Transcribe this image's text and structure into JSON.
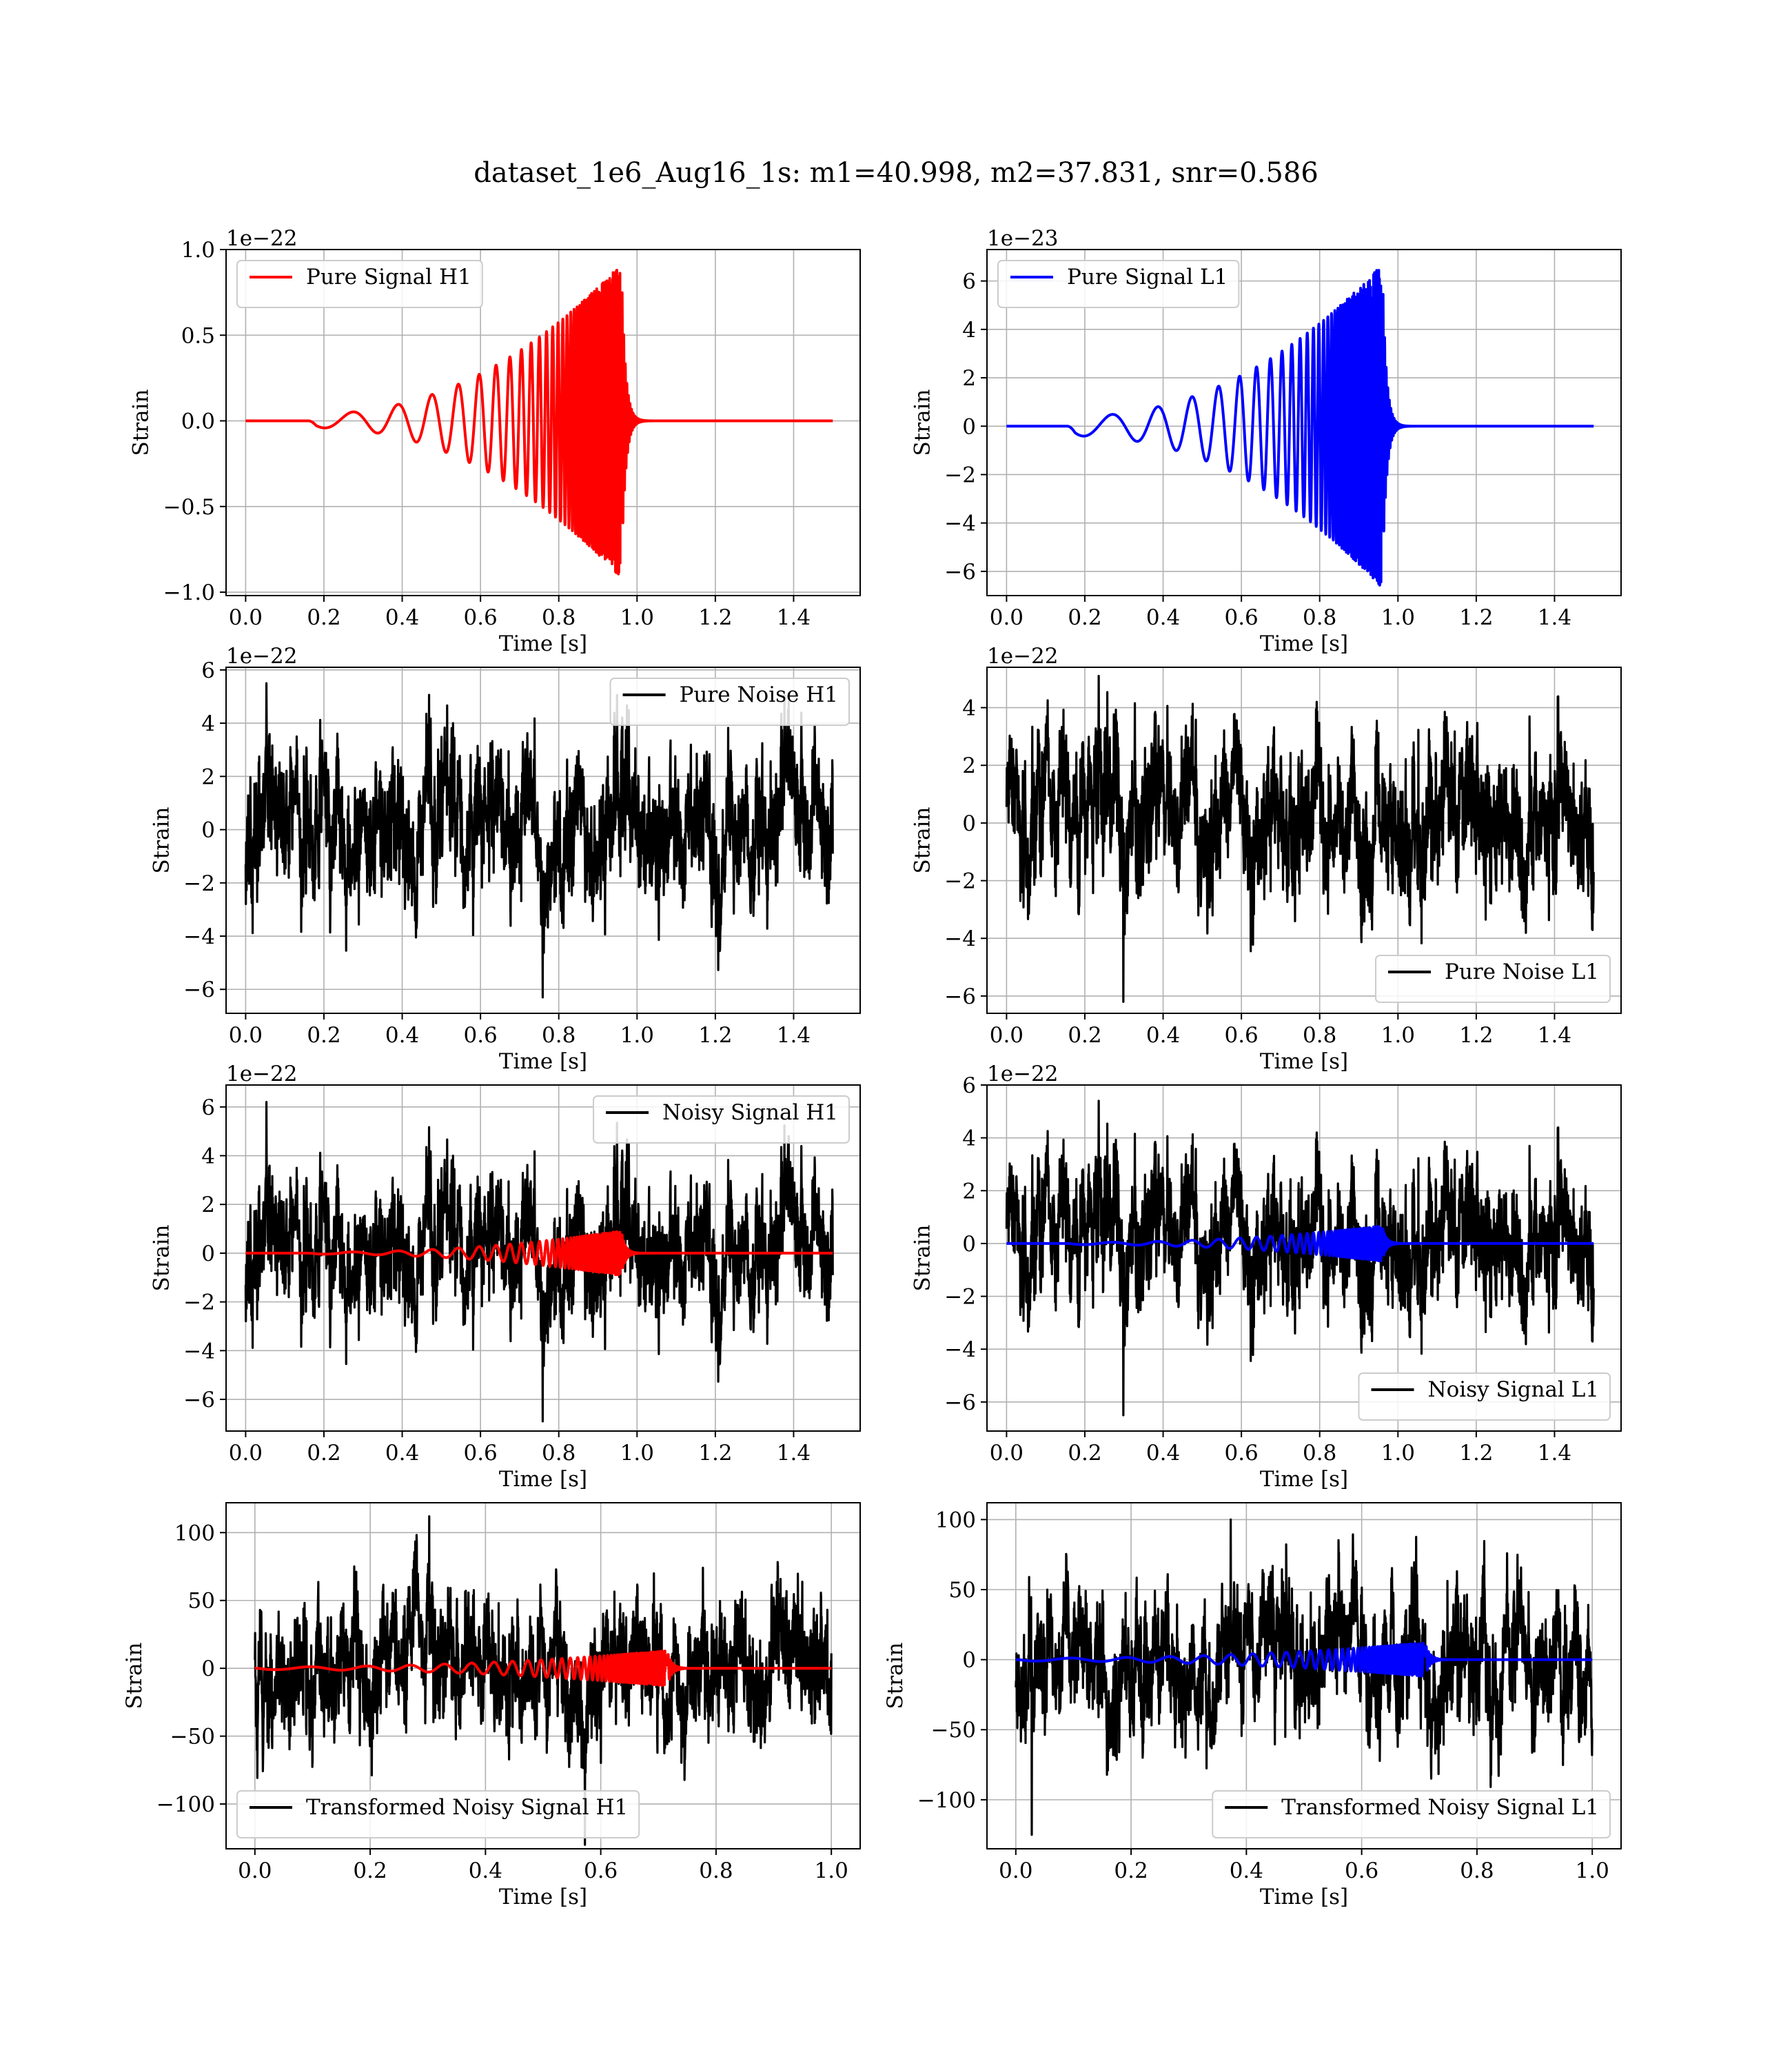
{
  "figure": {
    "title": "dataset_1e6_Aug16_1s: m1=40.998, m2=37.831, snr=0.586"
  },
  "chart_data": [
    {
      "type": "line",
      "title": "",
      "xlabel": "Time [s]",
      "ylabel": "Strain",
      "offset_label": "1e−22",
      "xlim": [
        -0.05,
        1.57
      ],
      "ylim": [
        -1.02,
        1.0
      ],
      "xticks": [
        0.0,
        0.2,
        0.4,
        0.6,
        0.8,
        1.0,
        1.2,
        1.4
      ],
      "yticks": [
        -1.0,
        -0.5,
        0.0,
        0.5,
        1.0
      ],
      "xtick_labels": [
        "0.0",
        "0.2",
        "0.4",
        "0.6",
        "0.8",
        "1.0",
        "1.2",
        "1.4"
      ],
      "ytick_labels": [
        "−1.0",
        "−0.5",
        "0.0",
        "0.5",
        "1.0"
      ],
      "grid": true,
      "legend_position": "top-left",
      "series": [
        {
          "name": "Pure Signal H1",
          "color": "#ff0000",
          "kind": "chirp",
          "x_start": 0.0,
          "x_end": 1.5,
          "onset": 0.16,
          "merger": 0.955,
          "start_amplitude": 0.04,
          "peak_amplitude": 0.92,
          "ringdown": 0.01
        }
      ]
    },
    {
      "type": "line",
      "title": "",
      "xlabel": "Time [s]",
      "ylabel": "Strain",
      "offset_label": "1e−23",
      "xlim": [
        -0.05,
        1.57
      ],
      "ylim": [
        -7.0,
        7.3
      ],
      "xticks": [
        0.0,
        0.2,
        0.4,
        0.6,
        0.8,
        1.0,
        1.2,
        1.4
      ],
      "yticks": [
        -6,
        -4,
        -2,
        0,
        2,
        4,
        6
      ],
      "xtick_labels": [
        "0.0",
        "0.2",
        "0.4",
        "0.6",
        "0.8",
        "1.0",
        "1.2",
        "1.4"
      ],
      "ytick_labels": [
        "−6",
        "−4",
        "−2",
        "0",
        "2",
        "4",
        "6"
      ],
      "grid": true,
      "legend_position": "top-left",
      "series": [
        {
          "name": "Pure Signal L1",
          "color": "#0000ff",
          "kind": "chirp",
          "x_start": 0.0,
          "x_end": 1.5,
          "onset": 0.155,
          "merger": 0.955,
          "start_amplitude": 0.4,
          "peak_amplitude": 6.7,
          "ringdown": 0.01
        }
      ]
    },
    {
      "type": "line",
      "title": "",
      "xlabel": "Time [s]",
      "ylabel": "Strain",
      "offset_label": "1e−22",
      "xlim": [
        -0.05,
        1.57
      ],
      "ylim": [
        -6.9,
        6.1
      ],
      "xticks": [
        0.0,
        0.2,
        0.4,
        0.6,
        0.8,
        1.0,
        1.2,
        1.4
      ],
      "yticks": [
        -6,
        -4,
        -2,
        0,
        2,
        4,
        6
      ],
      "xtick_labels": [
        "0.0",
        "0.2",
        "0.4",
        "0.6",
        "0.8",
        "1.0",
        "1.2",
        "1.4"
      ],
      "ytick_labels": [
        "−6",
        "−4",
        "−2",
        "0",
        "2",
        "4",
        "6"
      ],
      "grid": true,
      "legend_position": "top-right",
      "series": [
        {
          "name": "Pure Noise H1",
          "color": "#000000",
          "kind": "noise",
          "x_start": 0.0,
          "x_end": 1.5,
          "sigma": 1.7,
          "min": -6.3,
          "max": 5.5,
          "seed": 11
        }
      ]
    },
    {
      "type": "line",
      "title": "",
      "xlabel": "Time [s]",
      "ylabel": "Strain",
      "offset_label": "1e−22",
      "xlim": [
        -0.05,
        1.57
      ],
      "ylim": [
        -6.6,
        5.4
      ],
      "xticks": [
        0.0,
        0.2,
        0.4,
        0.6,
        0.8,
        1.0,
        1.2,
        1.4
      ],
      "yticks": [
        -6,
        -4,
        -2,
        0,
        2,
        4
      ],
      "xtick_labels": [
        "0.0",
        "0.2",
        "0.4",
        "0.6",
        "0.8",
        "1.0",
        "1.2",
        "1.4"
      ],
      "ytick_labels": [
        "−6",
        "−4",
        "−2",
        "0",
        "2",
        "4"
      ],
      "grid": true,
      "legend_position": "lower-right",
      "series": [
        {
          "name": "Pure Noise L1",
          "color": "#000000",
          "kind": "noise",
          "x_start": 0.0,
          "x_end": 1.5,
          "sigma": 1.6,
          "min": -6.2,
          "max": 5.1,
          "seed": 23
        }
      ]
    },
    {
      "type": "line",
      "title": "",
      "xlabel": "Time [s]",
      "ylabel": "Strain",
      "offset_label": "1e−22",
      "xlim": [
        -0.05,
        1.57
      ],
      "ylim": [
        -7.3,
        6.9
      ],
      "xticks": [
        0.0,
        0.2,
        0.4,
        0.6,
        0.8,
        1.0,
        1.2,
        1.4
      ],
      "yticks": [
        -6,
        -4,
        -2,
        0,
        2,
        4,
        6
      ],
      "xtick_labels": [
        "0.0",
        "0.2",
        "0.4",
        "0.6",
        "0.8",
        "1.0",
        "1.2",
        "1.4"
      ],
      "ytick_labels": [
        "−6",
        "−4",
        "−2",
        "0",
        "2",
        "4",
        "6"
      ],
      "grid": true,
      "legend_position": "top-right",
      "series": [
        {
          "name": "Noisy Signal H1",
          "color": "#000000",
          "kind": "noise",
          "x_start": 0.0,
          "x_end": 1.5,
          "sigma": 1.7,
          "min": -6.9,
          "max": 6.2,
          "seed": 11
        },
        {
          "name": "",
          "color": "#ff0000",
          "kind": "chirp",
          "x_start": 0.0,
          "x_end": 1.5,
          "onset": 0.16,
          "merger": 0.955,
          "start_amplitude": 0.04,
          "peak_amplitude": 0.92,
          "ringdown": 0.01
        }
      ]
    },
    {
      "type": "line",
      "title": "",
      "xlabel": "Time [s]",
      "ylabel": "Strain",
      "offset_label": "1e−22",
      "xlim": [
        -0.05,
        1.57
      ],
      "ylim": [
        -7.1,
        6.0
      ],
      "xticks": [
        0.0,
        0.2,
        0.4,
        0.6,
        0.8,
        1.0,
        1.2,
        1.4
      ],
      "yticks": [
        -6,
        -4,
        -2,
        0,
        2,
        4,
        6
      ],
      "xtick_labels": [
        "0.0",
        "0.2",
        "0.4",
        "0.6",
        "0.8",
        "1.0",
        "1.2",
        "1.4"
      ],
      "ytick_labels": [
        "−6",
        "−4",
        "−2",
        "0",
        "2",
        "4",
        "6"
      ],
      "grid": true,
      "legend_position": "lower-right",
      "series": [
        {
          "name": "Noisy Signal L1",
          "color": "#000000",
          "kind": "noise",
          "x_start": 0.0,
          "x_end": 1.5,
          "sigma": 1.6,
          "min": -6.5,
          "max": 5.4,
          "seed": 23
        },
        {
          "name": "",
          "color": "#0000ff",
          "kind": "chirp",
          "x_start": 0.0,
          "x_end": 1.5,
          "onset": 0.155,
          "merger": 0.955,
          "start_amplitude": 0.04,
          "peak_amplitude": 0.67,
          "ringdown": 0.01
        }
      ]
    },
    {
      "type": "line",
      "title": "",
      "xlabel": "Time [s]",
      "ylabel": "Strain",
      "offset_label": "",
      "xlim": [
        -0.05,
        1.05
      ],
      "ylim": [
        -133,
        122
      ],
      "xticks": [
        0.0,
        0.2,
        0.4,
        0.6,
        0.8,
        1.0
      ],
      "yticks": [
        -100,
        -50,
        0,
        50,
        100
      ],
      "xtick_labels": [
        "0.0",
        "0.2",
        "0.4",
        "0.6",
        "0.8",
        "1.0"
      ],
      "ytick_labels": [
        "−100",
        "−50",
        "0",
        "50",
        "100"
      ],
      "grid": true,
      "legend_position": "lower-left",
      "series": [
        {
          "name": "Transformed Noisy Signal H1",
          "color": "#000000",
          "kind": "noise",
          "x_start": 0.0,
          "x_end": 1.0,
          "sigma": 30,
          "min": -130,
          "max": 112,
          "seed": 37
        },
        {
          "name": "",
          "color": "#ff0000",
          "kind": "chirp",
          "x_start": 0.0,
          "x_end": 1.0,
          "onset": 0.0,
          "merger": 0.71,
          "start_amplitude": 1.0,
          "peak_amplitude": 13,
          "ringdown": 0.008
        }
      ]
    },
    {
      "type": "line",
      "title": "",
      "xlabel": "Time [s]",
      "ylabel": "Strain",
      "offset_label": "",
      "xlim": [
        -0.05,
        1.05
      ],
      "ylim": [
        -135,
        112
      ],
      "xticks": [
        0.0,
        0.2,
        0.4,
        0.6,
        0.8,
        1.0
      ],
      "yticks": [
        -100,
        -50,
        0,
        50,
        100
      ],
      "xtick_labels": [
        "0.0",
        "0.2",
        "0.4",
        "0.6",
        "0.8",
        "1.0"
      ],
      "ytick_labels": [
        "−100",
        "−50",
        "0",
        "50",
        "100"
      ],
      "grid": true,
      "legend_position": "lower-right",
      "series": [
        {
          "name": "Transformed Noisy Signal L1",
          "color": "#000000",
          "kind": "noise",
          "x_start": 0.0,
          "x_end": 1.0,
          "sigma": 30,
          "min": -125,
          "max": 100,
          "seed": 41
        },
        {
          "name": "",
          "color": "#0000ff",
          "kind": "chirp",
          "x_start": 0.0,
          "x_end": 1.0,
          "onset": 0.0,
          "merger": 0.705,
          "start_amplitude": 1.0,
          "peak_amplitude": 12,
          "ringdown": 0.008
        }
      ]
    }
  ]
}
